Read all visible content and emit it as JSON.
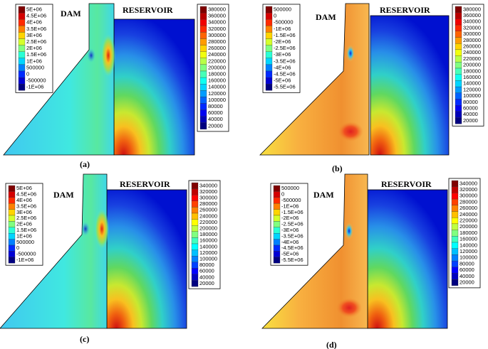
{
  "panels": [
    {
      "caption": "(a)",
      "dam_label": "DAM",
      "reservoir_label": "RESERVOIR",
      "dam_legend": [
        "5E+06",
        "4.5E+06",
        "4E+06",
        "3.5E+06",
        "3E+06",
        "2.5E+06",
        "2E+06",
        "1.5E+06",
        "1E+06",
        "500000",
        "0",
        "-500000",
        "-1E+06"
      ],
      "reservoir_legend": [
        "380000",
        "360000",
        "340000",
        "320000",
        "300000",
        "280000",
        "260000",
        "240000",
        "220000",
        "200000",
        "180000",
        "160000",
        "140000",
        "120000",
        "100000",
        "80000",
        "60000",
        "40000",
        "20000"
      ]
    },
    {
      "caption": "(b)",
      "dam_label": "DAM",
      "reservoir_label": "RESERVOIR",
      "dam_legend": [
        "500000",
        "0",
        "-500000",
        "-1E+06",
        "-1.5E+06",
        "-2E+06",
        "-2.5E+06",
        "-3E+06",
        "-3.5E+06",
        "-4E+06",
        "-4.5E+06",
        "-5E+06",
        "-5.5E+06"
      ],
      "reservoir_legend": [
        "380000",
        "360000",
        "340000",
        "320000",
        "300000",
        "280000",
        "260000",
        "240000",
        "220000",
        "200000",
        "180000",
        "160000",
        "140000",
        "120000",
        "100000",
        "80000",
        "60000",
        "40000",
        "20000"
      ]
    },
    {
      "caption": "(c)",
      "dam_label": "DAM",
      "reservoir_label": "RESERVOIR",
      "dam_legend": [
        "5E+06",
        "4.5E+06",
        "4E+06",
        "3.5E+06",
        "3E+06",
        "2.5E+06",
        "2E+06",
        "1.5E+06",
        "1E+06",
        "500000",
        "0",
        "-500000",
        "-1E+06"
      ],
      "reservoir_legend": [
        "340000",
        "320000",
        "300000",
        "280000",
        "260000",
        "240000",
        "220000",
        "200000",
        "180000",
        "160000",
        "140000",
        "120000",
        "100000",
        "80000",
        "60000",
        "40000",
        "20000"
      ]
    },
    {
      "caption": "(d)",
      "dam_label": "DAM",
      "reservoir_label": "RESERVOIR",
      "dam_legend": [
        "500000",
        "0",
        "-500000",
        "-1E+06",
        "-1.5E+06",
        "-2E+06",
        "-2.5E+06",
        "-3E+06",
        "-3.5E+06",
        "-4E+06",
        "-4.5E+06",
        "-5E+06",
        "-5.5E+06"
      ],
      "reservoir_legend": [
        "340000",
        "320000",
        "300000",
        "280000",
        "260000",
        "240000",
        "220000",
        "200000",
        "180000",
        "160000",
        "140000",
        "120000",
        "100000",
        "80000",
        "60000",
        "40000",
        "20000"
      ]
    }
  ]
}
